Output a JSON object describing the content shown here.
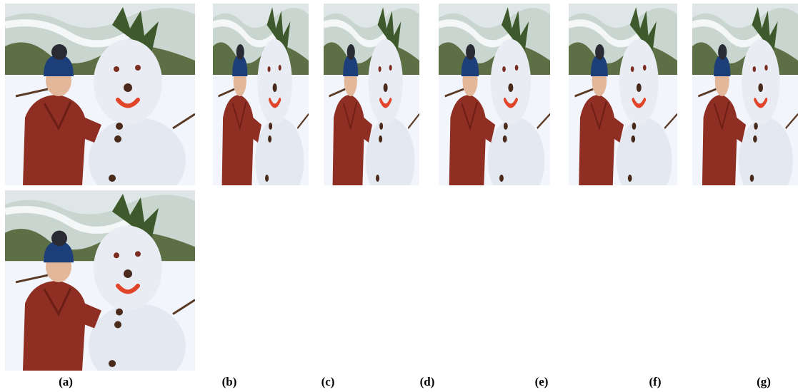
{
  "captions": [
    "(a)",
    "(b)",
    "(c)",
    "(d)",
    "(e)",
    "(f)",
    "(g)"
  ]
}
